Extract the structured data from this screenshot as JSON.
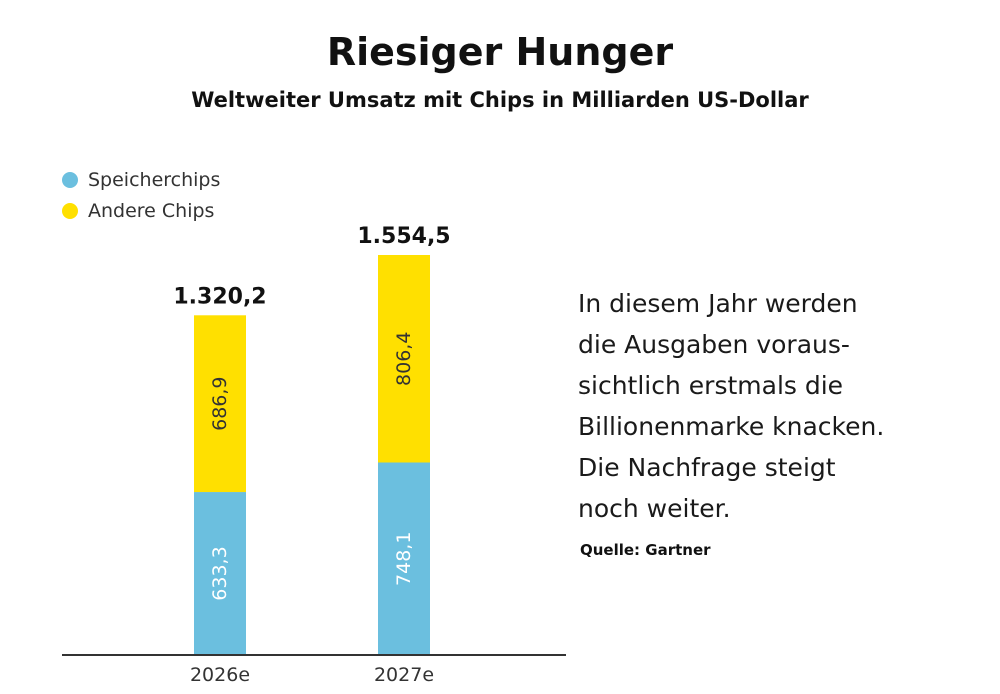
{
  "header": {
    "title": "Riesiger Hunger",
    "subtitle": "Weltweiter Umsatz mit Chips in Milliarden US-Dollar"
  },
  "legend": [
    {
      "label": "Speicherchips",
      "color": "#6BBFDF"
    },
    {
      "label": "Andere Chips",
      "color": "#FFE000"
    }
  ],
  "note": {
    "lines": [
      "In diesem Jahr werden",
      "die Ausgaben voraus-",
      "sichtlich erstmals die",
      "Billionenmarke knacken.",
      "Die Nachfrage steigt",
      "noch weiter."
    ],
    "source": "Quelle: Gartner"
  },
  "chart_data": {
    "type": "bar",
    "stacked": true,
    "title": "Riesiger Hunger",
    "subtitle": "Weltweiter Umsatz mit Chips in Milliarden US-Dollar",
    "xlabel": "",
    "ylabel": "",
    "categories": [
      "2026e",
      "2027e"
    ],
    "series": [
      {
        "name": "Speicherchips",
        "values": [
          633.3,
          748.1
        ],
        "labels": [
          "633,3",
          "748,1"
        ],
        "color": "#6BBFDF"
      },
      {
        "name": "Andere Chips",
        "values": [
          686.9,
          806.4
        ],
        "labels": [
          "686,9",
          "806,4"
        ],
        "color": "#FFE000"
      }
    ],
    "totals": [
      1320.2,
      1554.5
    ],
    "total_labels": [
      "1.320,2",
      "1.554,5"
    ],
    "ylim": [
      0,
      1554.5
    ],
    "grid": false,
    "legend_position": "top-left"
  }
}
